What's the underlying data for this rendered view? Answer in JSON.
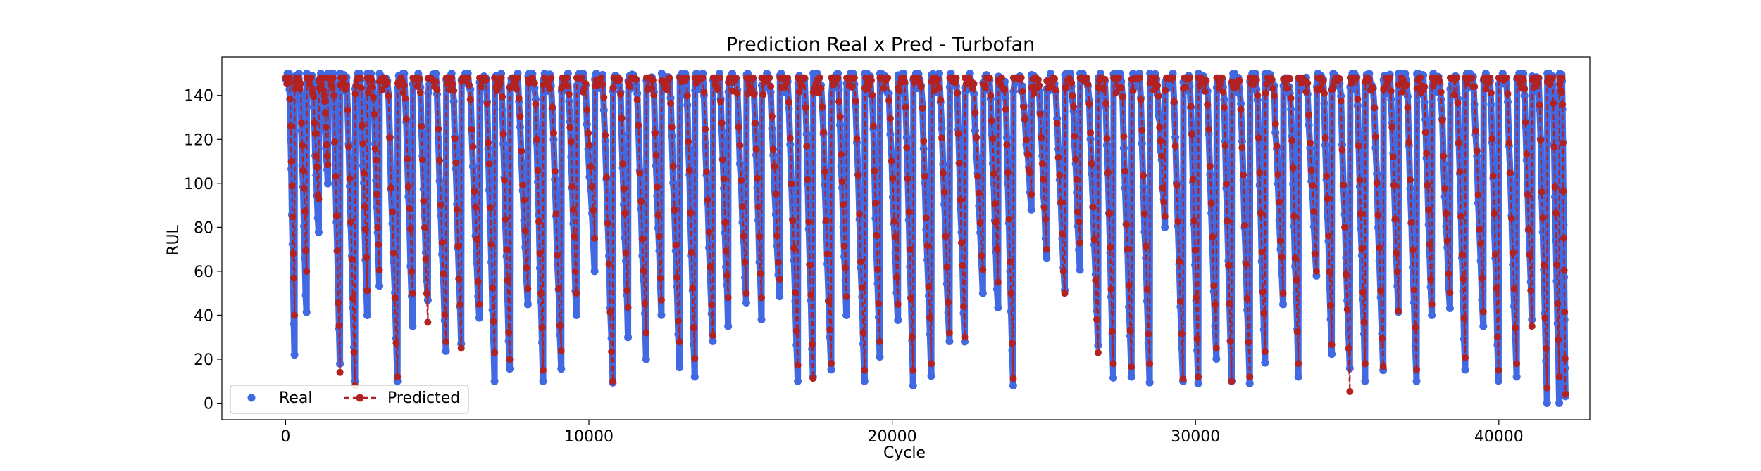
{
  "chart_data": {
    "type": "line",
    "title": "Prediction Real x Pred - Turbofan",
    "xlabel": "Cycle",
    "ylabel": "RUL",
    "xlim": [
      -2100,
      43000
    ],
    "ylim": [
      -7.5,
      157.5
    ],
    "xticks": [
      0,
      10000,
      20000,
      30000,
      40000
    ],
    "yticks": [
      0,
      20,
      40,
      60,
      80,
      100,
      120,
      140
    ],
    "grid": false,
    "legend_position": "lower-left",
    "series": [
      {
        "name": "Real",
        "color": "#4169E1",
        "style": "scatter",
        "x": [
          0,
          300,
          700,
          1100,
          1400,
          1800,
          2300,
          2700,
          3100,
          3700,
          4200,
          4700,
          5300,
          5800,
          6400,
          6900,
          7400,
          8000,
          8500,
          9100,
          9600,
          10200,
          10800,
          11300,
          11900,
          12400,
          13000,
          13500,
          14100,
          14600,
          15200,
          15700,
          16300,
          16900,
          17400,
          18000,
          18500,
          19100,
          19600,
          20200,
          20700,
          21300,
          21900,
          22400,
          23000,
          23500,
          24000,
          24600,
          25100,
          25700,
          26200,
          26800,
          27300,
          27900,
          28500,
          29000,
          29600,
          30100,
          30700,
          31200,
          31800,
          32300,
          32900,
          33400,
          34000,
          34500,
          35100,
          35600,
          36200,
          36700,
          37300,
          37800,
          38400,
          38900,
          39500,
          40000,
          40600,
          41100,
          41600,
          42000
        ],
        "mins": [
          22,
          38,
          75,
          98,
          15,
          10,
          40,
          50,
          10,
          35,
          45,
          20,
          25,
          35,
          10,
          12,
          45,
          10,
          14,
          40,
          60,
          8,
          30,
          20,
          40,
          15,
          12,
          25,
          35,
          42,
          38,
          45,
          10,
          8,
          12,
          40,
          10,
          20,
          35,
          8,
          10,
          25,
          28,
          50,
          40,
          8,
          88,
          65,
          48,
          60,
          25,
          10,
          12,
          8,
          80,
          10,
          9,
          20,
          10,
          9,
          15,
          45,
          12,
          55,
          20,
          12,
          10,
          12,
          38,
          10,
          40,
          40,
          14,
          35,
          10,
          12,
          38,
          0,
          0,
          0
        ]
      },
      {
        "name": "Predicted",
        "color": "#B22222",
        "style": "line-marker",
        "x": [
          0,
          300,
          700,
          1100,
          1400,
          1800,
          2300,
          2700,
          3100,
          3700,
          4200,
          4700,
          5300,
          5800,
          6400,
          6900,
          7400,
          8000,
          8500,
          9100,
          9600,
          10200,
          10800,
          11300,
          11900,
          12400,
          13000,
          13500,
          14100,
          14600,
          15200,
          15700,
          16300,
          16900,
          17400,
          18000,
          18500,
          19100,
          19600,
          20200,
          20700,
          21300,
          21900,
          22400,
          23000,
          23500,
          24000,
          24600,
          25100,
          25700,
          26200,
          26800,
          27300,
          27900,
          28500,
          29000,
          29600,
          30100,
          30700,
          31200,
          31800,
          32300,
          32900,
          33400,
          34000,
          34500,
          35100,
          35600,
          36200,
          36700,
          37300,
          37800,
          38400,
          38900,
          39500,
          40000,
          40600,
          41100,
          41600,
          42000
        ],
        "mins": [
          40,
          60,
          90,
          105,
          14,
          8,
          50,
          60,
          12,
          50,
          33,
          28,
          25,
          45,
          22,
          18,
          50,
          15,
          20,
          50,
          75,
          8,
          40,
          30,
          45,
          25,
          20,
          30,
          45,
          50,
          48,
          55,
          15,
          10,
          15,
          48,
          15,
          28,
          45,
          15,
          18,
          30,
          30,
          58,
          55,
          10,
          95,
          70,
          50,
          70,
          22,
          18,
          15,
          18,
          85,
          10,
          12,
          25,
          10,
          12,
          20,
          50,
          18,
          60,
          25,
          3,
          18,
          15,
          42,
          15,
          45,
          48,
          20,
          40,
          15,
          18,
          35,
          5,
          12,
          2
        ]
      }
    ]
  }
}
